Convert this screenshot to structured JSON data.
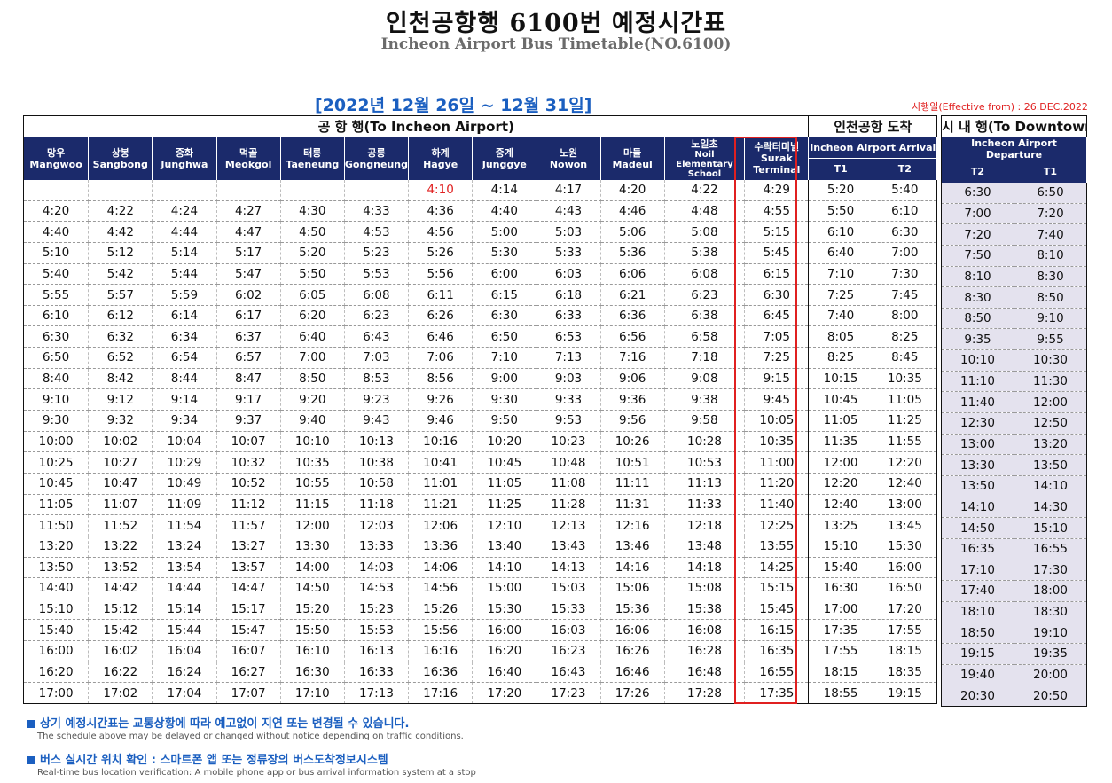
{
  "title_ko": "인천공항행 6100번 예정시간표",
  "title_en": "Incheon Airport Bus Timetable(NO.6100)",
  "period": "[2022년 12월 26일 ~ 12월 31일]",
  "effective": "시행일(Effective from) : 26.DEC.2022",
  "sections": {
    "to_airport": "공 항 행(To Incheon Airport)",
    "arrival": "인천공항 도착",
    "downtown": "시 내 행(To Downtown)"
  },
  "stops": [
    {
      "ko": "망우",
      "en": "Mangwoo"
    },
    {
      "ko": "상봉",
      "en": "Sangbong"
    },
    {
      "ko": "중화",
      "en": "Junghwa"
    },
    {
      "ko": "먹골",
      "en": "Meokgol"
    },
    {
      "ko": "태릉",
      "en": "Taeneung"
    },
    {
      "ko": "공릉",
      "en": "Gongneung"
    },
    {
      "ko": "하계",
      "en": "Hagye"
    },
    {
      "ko": "중계",
      "en": "Junggye"
    },
    {
      "ko": "노원",
      "en": "Nowon"
    },
    {
      "ko": "마들",
      "en": "Madeul"
    },
    {
      "ko": "노일초",
      "en": "Noil Elementary School"
    },
    {
      "ko": "수락터미널",
      "en": "Surak Terminal"
    }
  ],
  "arrival_header": "Incheon Airport Arrival",
  "departure_header": "Incheon Airport Departure",
  "arrival_terminals": [
    "T1",
    "T2"
  ],
  "departure_terminals": [
    "T2",
    "T1"
  ],
  "rows": [
    [
      "",
      "",
      "",
      "",
      "",
      "",
      "4:10",
      "4:14",
      "4:17",
      "4:20",
      "4:22",
      "4:29",
      "5:20",
      "5:40"
    ],
    [
      "4:20",
      "4:22",
      "4:24",
      "4:27",
      "4:30",
      "4:33",
      "4:36",
      "4:40",
      "4:43",
      "4:46",
      "4:48",
      "4:55",
      "5:50",
      "6:10"
    ],
    [
      "4:40",
      "4:42",
      "4:44",
      "4:47",
      "4:50",
      "4:53",
      "4:56",
      "5:00",
      "5:03",
      "5:06",
      "5:08",
      "5:15",
      "6:10",
      "6:30"
    ],
    [
      "5:10",
      "5:12",
      "5:14",
      "5:17",
      "5:20",
      "5:23",
      "5:26",
      "5:30",
      "5:33",
      "5:36",
      "5:38",
      "5:45",
      "6:40",
      "7:00"
    ],
    [
      "5:40",
      "5:42",
      "5:44",
      "5:47",
      "5:50",
      "5:53",
      "5:56",
      "6:00",
      "6:03",
      "6:06",
      "6:08",
      "6:15",
      "7:10",
      "7:30"
    ],
    [
      "5:55",
      "5:57",
      "5:59",
      "6:02",
      "6:05",
      "6:08",
      "6:11",
      "6:15",
      "6:18",
      "6:21",
      "6:23",
      "6:30",
      "7:25",
      "7:45"
    ],
    [
      "6:10",
      "6:12",
      "6:14",
      "6:17",
      "6:20",
      "6:23",
      "6:26",
      "6:30",
      "6:33",
      "6:36",
      "6:38",
      "6:45",
      "7:40",
      "8:00"
    ],
    [
      "6:30",
      "6:32",
      "6:34",
      "6:37",
      "6:40",
      "6:43",
      "6:46",
      "6:50",
      "6:53",
      "6:56",
      "6:58",
      "7:05",
      "8:05",
      "8:25"
    ],
    [
      "6:50",
      "6:52",
      "6:54",
      "6:57",
      "7:00",
      "7:03",
      "7:06",
      "7:10",
      "7:13",
      "7:16",
      "7:18",
      "7:25",
      "8:25",
      "8:45"
    ],
    [
      "8:40",
      "8:42",
      "8:44",
      "8:47",
      "8:50",
      "8:53",
      "8:56",
      "9:00",
      "9:03",
      "9:06",
      "9:08",
      "9:15",
      "10:15",
      "10:35"
    ],
    [
      "9:10",
      "9:12",
      "9:14",
      "9:17",
      "9:20",
      "9:23",
      "9:26",
      "9:30",
      "9:33",
      "9:36",
      "9:38",
      "9:45",
      "10:45",
      "11:05"
    ],
    [
      "9:30",
      "9:32",
      "9:34",
      "9:37",
      "9:40",
      "9:43",
      "9:46",
      "9:50",
      "9:53",
      "9:56",
      "9:58",
      "10:05",
      "11:05",
      "11:25"
    ],
    [
      "10:00",
      "10:02",
      "10:04",
      "10:07",
      "10:10",
      "10:13",
      "10:16",
      "10:20",
      "10:23",
      "10:26",
      "10:28",
      "10:35",
      "11:35",
      "11:55"
    ],
    [
      "10:25",
      "10:27",
      "10:29",
      "10:32",
      "10:35",
      "10:38",
      "10:41",
      "10:45",
      "10:48",
      "10:51",
      "10:53",
      "11:00",
      "12:00",
      "12:20"
    ],
    [
      "10:45",
      "10:47",
      "10:49",
      "10:52",
      "10:55",
      "10:58",
      "11:01",
      "11:05",
      "11:08",
      "11:11",
      "11:13",
      "11:20",
      "12:20",
      "12:40"
    ],
    [
      "11:05",
      "11:07",
      "11:09",
      "11:12",
      "11:15",
      "11:18",
      "11:21",
      "11:25",
      "11:28",
      "11:31",
      "11:33",
      "11:40",
      "12:40",
      "13:00"
    ],
    [
      "11:50",
      "11:52",
      "11:54",
      "11:57",
      "12:00",
      "12:03",
      "12:06",
      "12:10",
      "12:13",
      "12:16",
      "12:18",
      "12:25",
      "13:25",
      "13:45"
    ],
    [
      "13:20",
      "13:22",
      "13:24",
      "13:27",
      "13:30",
      "13:33",
      "13:36",
      "13:40",
      "13:43",
      "13:46",
      "13:48",
      "13:55",
      "15:10",
      "15:30"
    ],
    [
      "13:50",
      "13:52",
      "13:54",
      "13:57",
      "14:00",
      "14:03",
      "14:06",
      "14:10",
      "14:13",
      "14:16",
      "14:18",
      "14:25",
      "15:40",
      "16:00"
    ],
    [
      "14:40",
      "14:42",
      "14:44",
      "14:47",
      "14:50",
      "14:53",
      "14:56",
      "15:00",
      "15:03",
      "15:06",
      "15:08",
      "15:15",
      "16:30",
      "16:50"
    ],
    [
      "15:10",
      "15:12",
      "15:14",
      "15:17",
      "15:20",
      "15:23",
      "15:26",
      "15:30",
      "15:33",
      "15:36",
      "15:38",
      "15:45",
      "17:00",
      "17:20"
    ],
    [
      "15:40",
      "15:42",
      "15:44",
      "15:47",
      "15:50",
      "15:53",
      "15:56",
      "16:00",
      "16:03",
      "16:06",
      "16:08",
      "16:15",
      "17:35",
      "17:55"
    ],
    [
      "16:00",
      "16:02",
      "16:04",
      "16:07",
      "16:10",
      "16:13",
      "16:16",
      "16:20",
      "16:23",
      "16:26",
      "16:28",
      "16:35",
      "17:55",
      "18:15"
    ],
    [
      "16:20",
      "16:22",
      "16:24",
      "16:27",
      "16:30",
      "16:33",
      "16:36",
      "16:40",
      "16:43",
      "16:46",
      "16:48",
      "16:55",
      "18:15",
      "18:35"
    ],
    [
      "17:00",
      "17:02",
      "17:04",
      "17:07",
      "17:10",
      "17:13",
      "17:16",
      "17:20",
      "17:23",
      "17:26",
      "17:28",
      "17:35",
      "18:55",
      "19:15"
    ]
  ],
  "red_cells": [
    [
      0,
      6
    ]
  ],
  "downtown_rows": [
    [
      "6:30",
      "6:50"
    ],
    [
      "7:00",
      "7:20"
    ],
    [
      "7:20",
      "7:40"
    ],
    [
      "7:50",
      "8:10"
    ],
    [
      "8:10",
      "8:30"
    ],
    [
      "8:30",
      "8:50"
    ],
    [
      "8:50",
      "9:10"
    ],
    [
      "9:35",
      "9:55"
    ],
    [
      "10:10",
      "10:30"
    ],
    [
      "11:10",
      "11:30"
    ],
    [
      "11:40",
      "12:00"
    ],
    [
      "12:30",
      "12:50"
    ],
    [
      "13:00",
      "13:20"
    ],
    [
      "13:30",
      "13:50"
    ],
    [
      "13:50",
      "14:10"
    ],
    [
      "14:10",
      "14:30"
    ],
    [
      "14:50",
      "15:10"
    ],
    [
      "16:35",
      "16:55"
    ],
    [
      "17:10",
      "17:30"
    ],
    [
      "17:40",
      "18:00"
    ],
    [
      "18:10",
      "18:30"
    ],
    [
      "18:50",
      "19:10"
    ],
    [
      "19:15",
      "19:35"
    ],
    [
      "19:40",
      "20:00"
    ],
    [
      "20:30",
      "20:50"
    ]
  ],
  "notes": [
    {
      "ko": "상기 예정시간표는 교통상황에 따라 예고없이 지연 또는 변경될 수 있습니다.",
      "en": "The schedule above may be delayed or changed without notice depending on traffic conditions."
    },
    {
      "ko": "버스 실시간 위치 확인 : 스마트폰 앱 또는 정류장의 버스도착정보시스템",
      "en": "Real-time bus location verification: A mobile phone app or bus arrival information system at a stop"
    }
  ],
  "colors": {
    "header_bg": "#1b2a6b",
    "accent_blue": "#1b5fc0",
    "red": "#e02020",
    "downtown_bg": "#e4e2ee"
  }
}
